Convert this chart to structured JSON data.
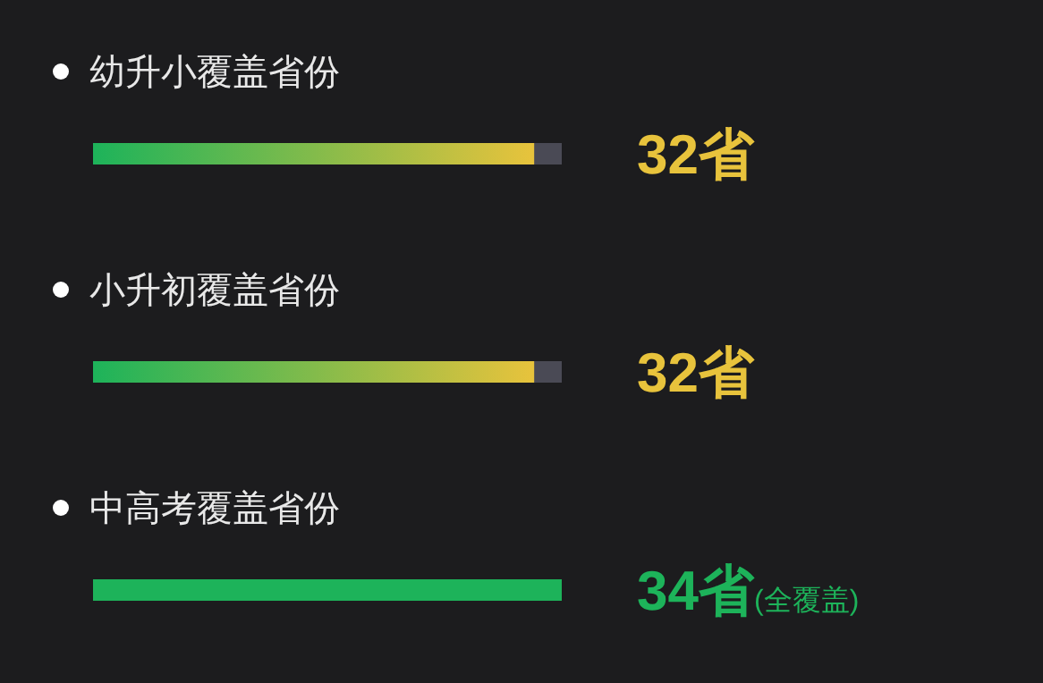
{
  "chart_data": {
    "type": "bar",
    "orientation": "horizontal",
    "categories": [
      "幼升小覆盖省份",
      "小升初覆盖省份",
      "中高考覆盖省份"
    ],
    "values": [
      32,
      32,
      34
    ],
    "colors": [
      "#e8c33c",
      "#e8c33c",
      "#1db35a"
    ],
    "value_labels": [
      "32省",
      "32省",
      "34省(全覆盖)"
    ],
    "xlim": [
      0,
      34
    ]
  }
}
